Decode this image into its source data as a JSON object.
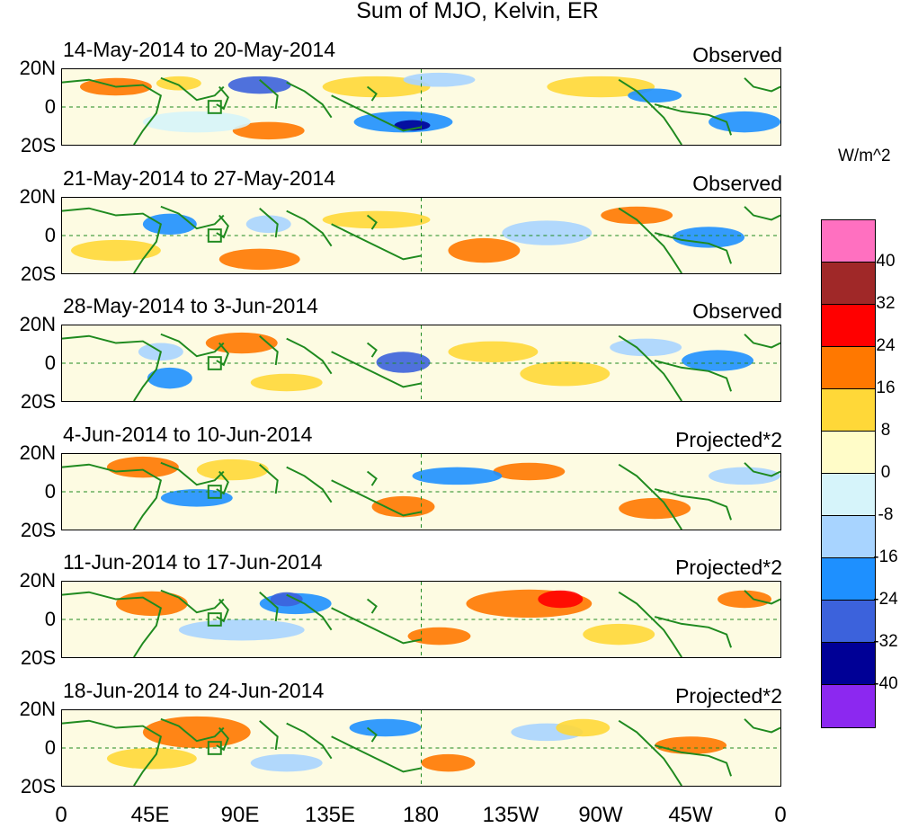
{
  "title": "Sum of MJO, Kelvin, ER",
  "units": "W/m^2",
  "panels": [
    {
      "date_range": "14-May-2014 to 20-May-2014",
      "status": "Observed"
    },
    {
      "date_range": "21-May-2014 to 27-May-2014",
      "status": "Observed"
    },
    {
      "date_range": "28-May-2014 to 3-Jun-2014",
      "status": "Observed"
    },
    {
      "date_range": "4-Jun-2014 to 10-Jun-2014",
      "status": "Projected*2"
    },
    {
      "date_range": "11-Jun-2014 to 17-Jun-2014",
      "status": "Projected*2"
    },
    {
      "date_range": "18-Jun-2014 to 24-Jun-2014",
      "status": "Projected*2"
    }
  ],
  "lat_labels": [
    "20N",
    "0",
    "20S"
  ],
  "lon_labels": [
    "0",
    "45E",
    "90E",
    "135E",
    "180",
    "135W",
    "90W",
    "45W",
    "0"
  ],
  "colorbar": {
    "labels": [
      "40",
      "32",
      "24",
      "16",
      "8",
      "0",
      "-8",
      "-16",
      "-24",
      "-32",
      "-40"
    ],
    "colors": [
      "#ff70c0",
      "#a02828",
      "#ff0000",
      "#ff7800",
      "#ffd838",
      "#fffcc8",
      "#d6f4fa",
      "#a8d4ff",
      "#1e90ff",
      "#3c62dc",
      "#000096",
      "#8c28f0"
    ]
  }
}
